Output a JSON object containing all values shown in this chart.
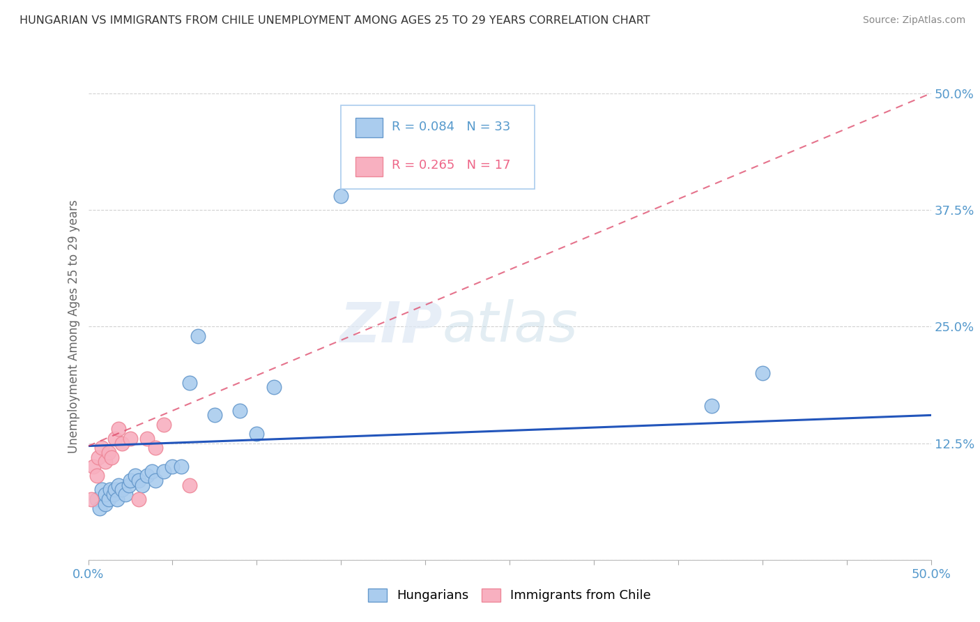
{
  "title": "HUNGARIAN VS IMMIGRANTS FROM CHILE UNEMPLOYMENT AMONG AGES 25 TO 29 YEARS CORRELATION CHART",
  "source": "Source: ZipAtlas.com",
  "ylabel": "Unemployment Among Ages 25 to 29 years",
  "xlim": [
    0,
    0.5
  ],
  "ylim": [
    0,
    0.5
  ],
  "xticks": [
    0.0,
    0.05,
    0.1,
    0.15,
    0.2,
    0.25,
    0.3,
    0.35,
    0.4,
    0.45,
    0.5
  ],
  "yticks": [
    0.0,
    0.125,
    0.25,
    0.375,
    0.5
  ],
  "ytick_labels": [
    "",
    "12.5%",
    "25.0%",
    "37.5%",
    "50.0%"
  ],
  "hungarian_x": [
    0.005,
    0.007,
    0.008,
    0.01,
    0.01,
    0.012,
    0.013,
    0.015,
    0.016,
    0.017,
    0.018,
    0.02,
    0.022,
    0.024,
    0.025,
    0.028,
    0.03,
    0.032,
    0.035,
    0.038,
    0.04,
    0.045,
    0.05,
    0.055,
    0.06,
    0.065,
    0.075,
    0.09,
    0.1,
    0.11,
    0.15,
    0.37,
    0.4
  ],
  "hungarian_y": [
    0.065,
    0.055,
    0.075,
    0.06,
    0.07,
    0.065,
    0.075,
    0.07,
    0.075,
    0.065,
    0.08,
    0.075,
    0.07,
    0.08,
    0.085,
    0.09,
    0.085,
    0.08,
    0.09,
    0.095,
    0.085,
    0.095,
    0.1,
    0.1,
    0.19,
    0.24,
    0.155,
    0.16,
    0.135,
    0.185,
    0.39,
    0.165,
    0.2
  ],
  "chile_x": [
    0.002,
    0.003,
    0.005,
    0.006,
    0.008,
    0.01,
    0.012,
    0.014,
    0.016,
    0.018,
    0.02,
    0.025,
    0.03,
    0.035,
    0.04,
    0.045,
    0.06
  ],
  "chile_y": [
    0.065,
    0.1,
    0.09,
    0.11,
    0.12,
    0.105,
    0.115,
    0.11,
    0.13,
    0.14,
    0.125,
    0.13,
    0.065,
    0.13,
    0.12,
    0.145,
    0.08
  ],
  "hungarian_color": "#aaccee",
  "chile_color": "#f8b0c0",
  "hungarian_edge": "#6699cc",
  "chile_edge": "#ee8899",
  "trend_hungarian_color": "#2255bb",
  "trend_chile_color": "#dd4466",
  "trend_h_x0": 0.0,
  "trend_h_y0": 0.122,
  "trend_h_x1": 0.5,
  "trend_h_y1": 0.155,
  "trend_c_x0": 0.0,
  "trend_c_y0": 0.122,
  "trend_c_x1": 0.5,
  "trend_c_y1": 0.5,
  "r_hungarian": 0.084,
  "n_hungarian": 33,
  "r_chile": 0.265,
  "n_chile": 17,
  "tick_color": "#5599cc",
  "background_color": "#ffffff",
  "grid_color": "#cccccc",
  "title_color": "#333333",
  "axis_label_color": "#666666"
}
